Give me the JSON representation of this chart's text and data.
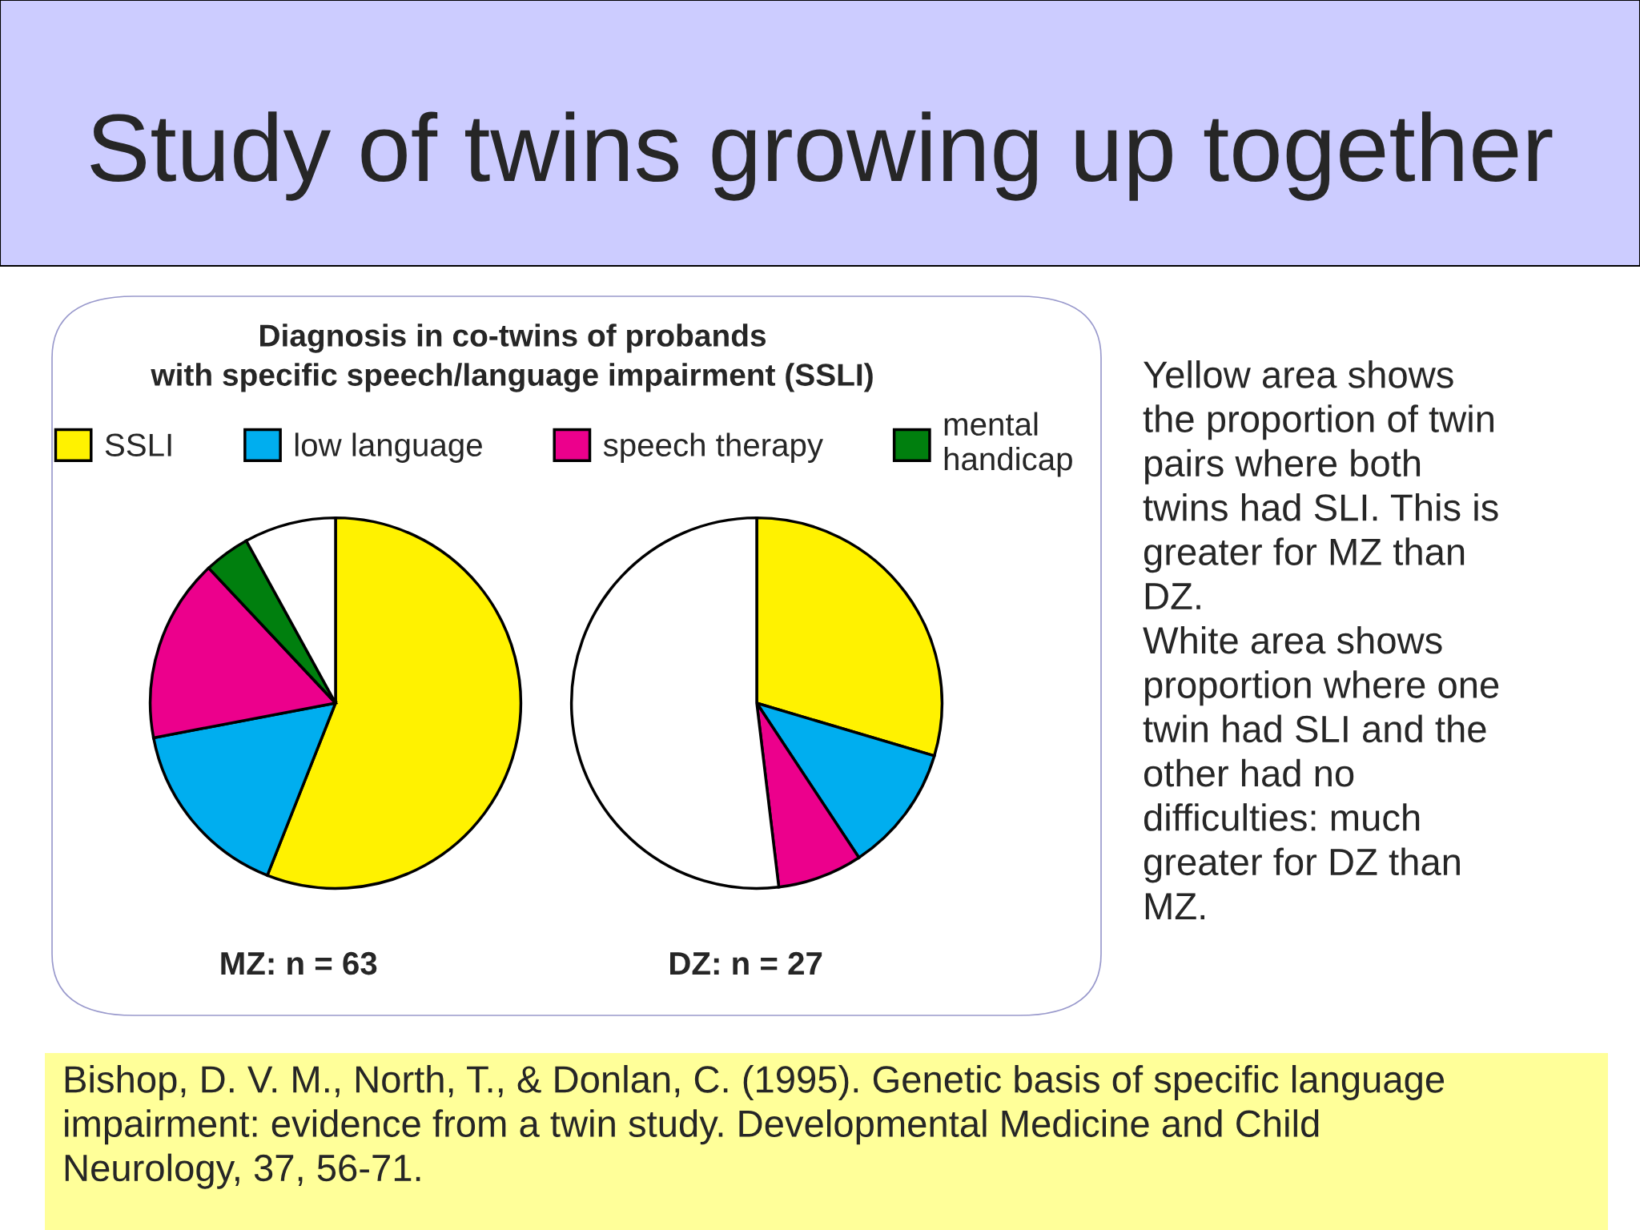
{
  "chart_data": [
    {
      "type": "pie",
      "title": "Study of twins growing up together",
      "subtitle": "Diagnosis in co-twins of probands\nwith specific speech/language impairment (SSLI)",
      "xlabel": "MZ: n = 63",
      "categories": [
        "SSLI",
        "low language",
        "speech therapy",
        "mental\nhandicap",
        null
      ],
      "values": [
        56,
        16,
        16,
        4,
        8
      ],
      "colors": [
        "#fff200",
        "#00aeef",
        "#ec008c",
        "#007f0e",
        "#ffffff"
      ],
      "legend": "top",
      "annotations": [
        "Yellow area shows\nthe proportion of twin\npairs where both\ntwins had SLI. This is\ngreater for MZ than\nDZ.\nWhite area shows\nproportion where one\ntwin had SLI and the\nother had no\ndifficulties: much\ngreater for DZ than\nMZ.",
        "Bishop, D. V. M., North, T., & Donlan, C. (1995). Genetic basis of specific language\nimpairment: evidence from a twin study. Developmental Medicine and Child\nNeurology, 37, 56-71."
      ]
    },
    {
      "type": "pie",
      "xlabel": "DZ: n = 27",
      "categories": [
        null,
        null,
        null,
        null,
        null
      ],
      "values": [
        29.6,
        11.1,
        7.4,
        0,
        51.9
      ],
      "colors": [
        "#fff200",
        "#00aeef",
        "#ec008c",
        "#007f0e",
        "#ffffff"
      ]
    }
  ]
}
